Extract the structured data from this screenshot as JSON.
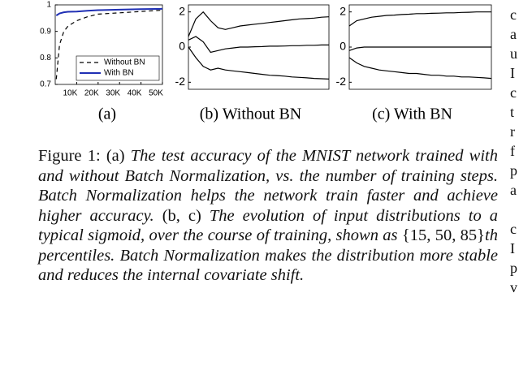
{
  "chart_data": [
    {
      "type": "line",
      "subtitle": "(a)",
      "x": [
        500,
        2000,
        4000,
        6000,
        10000,
        15000,
        20000,
        30000,
        40000,
        50000
      ],
      "xlim": [
        0,
        50000
      ],
      "xticks": [
        {
          "value": 10000,
          "label": "10K"
        },
        {
          "value": 20000,
          "label": "20K"
        },
        {
          "value": 30000,
          "label": "30K"
        },
        {
          "value": 40000,
          "label": "40K"
        },
        {
          "value": 50000,
          "label": "50K"
        }
      ],
      "ylim": [
        0.7,
        1
      ],
      "yticks": [
        0.7,
        0.8,
        0.9,
        1
      ],
      "legend": "lower right",
      "series": [
        {
          "name": "Without BN",
          "color": "#000000",
          "dash": true,
          "values": [
            0.72,
            0.85,
            0.9,
            0.92,
            0.94,
            0.955,
            0.965,
            0.97,
            0.975,
            0.98
          ]
        },
        {
          "name": "With BN",
          "color": "#1f2fb4",
          "dash": false,
          "values": [
            0.96,
            0.968,
            0.972,
            0.974,
            0.975,
            0.978,
            0.98,
            0.982,
            0.984,
            0.985
          ]
        }
      ]
    },
    {
      "type": "line",
      "subtitle": "(b) Without BN",
      "ylim": [
        -2.4,
        2.4
      ],
      "yticks": [
        -2,
        0,
        2
      ],
      "series": [
        {
          "color": "#000000",
          "values": [
            0.6,
            1.6,
            2.0,
            1.5,
            1.1,
            1.0,
            1.1,
            1.2,
            1.25,
            1.3,
            1.35,
            1.4,
            1.45,
            1.5,
            1.55,
            1.6,
            1.62,
            1.65,
            1.7,
            1.72
          ]
        },
        {
          "color": "#000000",
          "values": [
            0.4,
            0.6,
            0.3,
            -0.3,
            -0.2,
            -0.1,
            -0.05,
            0,
            0,
            0.02,
            0.03,
            0.05,
            0.05,
            0.06,
            0.08,
            0.08,
            0.1,
            0.1,
            0.12,
            0.12
          ]
        },
        {
          "color": "#000000",
          "values": [
            0,
            -0.6,
            -1.1,
            -1.3,
            -1.2,
            -1.3,
            -1.35,
            -1.4,
            -1.45,
            -1.5,
            -1.55,
            -1.6,
            -1.62,
            -1.65,
            -1.7,
            -1.72,
            -1.75,
            -1.78,
            -1.8,
            -1.82
          ]
        }
      ]
    },
    {
      "type": "line",
      "subtitle": "(c) With BN",
      "ylim": [
        -2.4,
        2.4
      ],
      "yticks": [
        -2,
        0,
        2
      ],
      "series": [
        {
          "color": "#000000",
          "values": [
            1.2,
            1.5,
            1.6,
            1.7,
            1.75,
            1.8,
            1.82,
            1.85,
            1.87,
            1.9,
            1.9,
            1.92,
            1.93,
            1.95,
            1.95,
            1.97,
            1.98,
            2.0,
            2.0,
            2.0
          ]
        },
        {
          "color": "#000000",
          "values": [
            -0.2,
            -0.05,
            0,
            0,
            0,
            0,
            0,
            0,
            0,
            0,
            0,
            0,
            0,
            0,
            0,
            0,
            0,
            0,
            0,
            0
          ]
        },
        {
          "color": "#000000",
          "values": [
            -0.6,
            -0.9,
            -1.1,
            -1.2,
            -1.3,
            -1.35,
            -1.4,
            -1.45,
            -1.5,
            -1.5,
            -1.55,
            -1.6,
            -1.6,
            -1.65,
            -1.65,
            -1.7,
            -1.7,
            -1.72,
            -1.75,
            -1.78
          ]
        }
      ]
    }
  ],
  "caption": [
    "Figure 1:  (a) ",
    "The test accuracy of the MNIST network trained with and without Batch Normalization, vs.  the number of training steps. Batch Normalization helps the network train faster and achieve higher accuracy.",
    "  (b, c) ",
    "The evolution of input distributions to a typical sigmoid, over the course of training, shown as ",
    "{15, 50, 85}",
    "th percentiles. Batch Normalization makes the distribution more stable and reduces the internal covariate shift."
  ],
  "right_column_fragments": [
    "c",
    "a",
    "u",
    "I",
    "c",
    "t",
    "r",
    "f",
    "p",
    "a",
    "",
    "c",
    "I",
    "p",
    "v"
  ]
}
